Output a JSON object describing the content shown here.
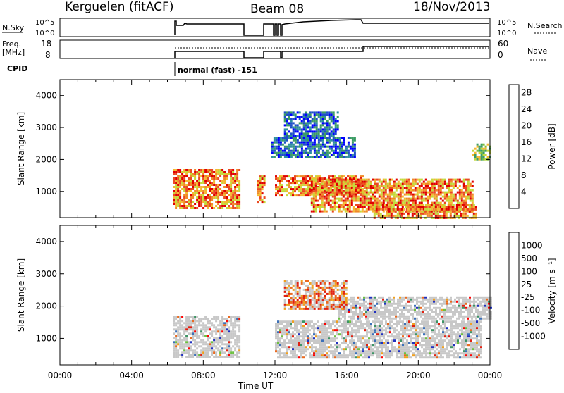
{
  "header": {
    "station": "Kerguelen (fitACF)",
    "beam": "Beam 08",
    "date": "18/Nov/2013"
  },
  "summary": {
    "nsky_label": "N.Sky",
    "nsky_ticks": [
      "10^5",
      "10^0"
    ],
    "nsearch_label": "N.Search",
    "nsearch_ticks": [
      "10^5",
      "10^0"
    ],
    "freq_label": "Freq.",
    "freq_unit": "[MHz]",
    "freq_ticks": [
      "18",
      "8"
    ],
    "nave_label": "Nave",
    "nave_ticks": [
      "60",
      "0"
    ],
    "cpid_label": "CPID",
    "cpid_text": "normal (fast) -151"
  },
  "chart_data": [
    {
      "type": "heatmap",
      "title": "",
      "ylabel": "Slant Range [km]",
      "xlabel": "",
      "x_ticks": [
        "00:00",
        "04:00",
        "08:00",
        "12:00",
        "16:00",
        "20:00",
        "00:00"
      ],
      "y_ticks": [
        "1000",
        "2000",
        "3000",
        "4000"
      ],
      "ylim": [
        180,
        4500
      ],
      "xlim_hours": [
        0,
        24
      ],
      "colorbar": {
        "label": "Power [dB]",
        "ticks": [
          "4",
          "8",
          "12",
          "16",
          "20",
          "24",
          "28"
        ],
        "colors": [
          "#0000ff",
          "#1f4fc8",
          "#2e8fa0",
          "#3c9c64",
          "#7cbf3a",
          "#c4d93a",
          "#f4b830",
          "#f08a28",
          "#ea4a22",
          "#e00000"
        ]
      },
      "regions": [
        {
          "t0": 6.3,
          "t1": 10.0,
          "r0": 500,
          "r1": 1700,
          "level": "high"
        },
        {
          "t0": 11.0,
          "t1": 11.4,
          "r0": 700,
          "r1": 1500,
          "level": "high"
        },
        {
          "t0": 12.0,
          "t1": 17.0,
          "r0": 900,
          "r1": 1500,
          "level": "high"
        },
        {
          "t0": 14.0,
          "t1": 23.0,
          "r0": 400,
          "r1": 1400,
          "level": "high"
        },
        {
          "t0": 17.5,
          "t1": 23.2,
          "r0": 200,
          "r1": 600,
          "level": "high"
        },
        {
          "t0": 11.8,
          "t1": 16.5,
          "r0": 2100,
          "r1": 2700,
          "level": "low"
        },
        {
          "t0": 12.5,
          "t1": 15.5,
          "r0": 2700,
          "r1": 3500,
          "level": "low"
        },
        {
          "t0": 23.0,
          "t1": 24.0,
          "r0": 2000,
          "r1": 2500,
          "level": "mid"
        }
      ]
    },
    {
      "type": "heatmap",
      "title": "",
      "ylabel": "Slant Range [km]",
      "xlabel": "Time UT",
      "x_ticks": [
        "00:00",
        "04:00",
        "08:00",
        "12:00",
        "16:00",
        "20:00",
        "00:00"
      ],
      "y_ticks": [
        "1000",
        "2000",
        "3000",
        "4000"
      ],
      "ylim": [
        180,
        4500
      ],
      "xlim_hours": [
        0,
        24
      ],
      "colorbar": {
        "label": "Velocity [m s⁻¹]",
        "ticks": [
          "1000",
          "500",
          "100",
          "25",
          "-25",
          "-100",
          "-500",
          "-1000"
        ],
        "colors": [
          "#2030c0",
          "#3c70b8",
          "#3c9464",
          "#6cc040",
          "#c8c8c8",
          "#f0a020",
          "#ea6a20",
          "#e02010",
          "#ff0000"
        ]
      },
      "regions": [
        {
          "t0": 6.3,
          "t1": 10.0,
          "r0": 450,
          "r1": 1700,
          "level": "gs"
        },
        {
          "t0": 12.0,
          "t1": 23.5,
          "r0": 400,
          "r1": 1550,
          "level": "gs"
        },
        {
          "t0": 15.5,
          "t1": 24.0,
          "r0": 1600,
          "r1": 2300,
          "level": "gs"
        },
        {
          "t0": 12.5,
          "t1": 16.0,
          "r0": 1900,
          "r1": 2800,
          "level": "neg"
        }
      ]
    }
  ]
}
